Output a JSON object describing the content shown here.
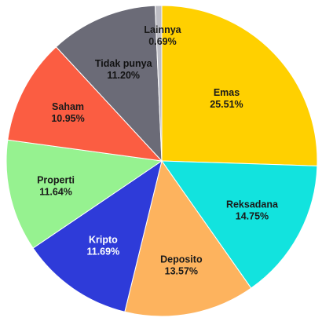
{
  "chart_data": {
    "type": "pie",
    "start_angle_deg": 0,
    "direction": "clockwise",
    "slices": [
      {
        "name": "Emas",
        "value": 25.51,
        "pct_label": "25.51%",
        "color": "#FFD000",
        "text_color": "#1a1a1a"
      },
      {
        "name": "Reksadana",
        "value": 14.75,
        "pct_label": "14.75%",
        "color": "#12E3DE",
        "text_color": "#1a1a1a"
      },
      {
        "name": "Deposito",
        "value": 13.57,
        "pct_label": "13.57%",
        "color": "#FDB35E",
        "text_color": "#1a1a1a"
      },
      {
        "name": "Kripto",
        "value": 11.69,
        "pct_label": "11.69%",
        "color": "#2E3BD9",
        "text_color": "#ffffff"
      },
      {
        "name": "Properti",
        "value": 11.64,
        "pct_label": "11.64%",
        "color": "#96F290",
        "text_color": "#1a1a1a"
      },
      {
        "name": "Saham",
        "value": 10.95,
        "pct_label": "10.95%",
        "color": "#FB5D42",
        "text_color": "#1a1a1a"
      },
      {
        "name": "Tidak punya",
        "value": 11.2,
        "pct_label": "11.20%",
        "color": "#6B6B77",
        "text_color": "#111111"
      },
      {
        "name": "Lainnya",
        "value": 0.69,
        "pct_label": "0.69%",
        "color": "#BDBDC4",
        "text_color": "#1a1a1a"
      }
    ]
  }
}
